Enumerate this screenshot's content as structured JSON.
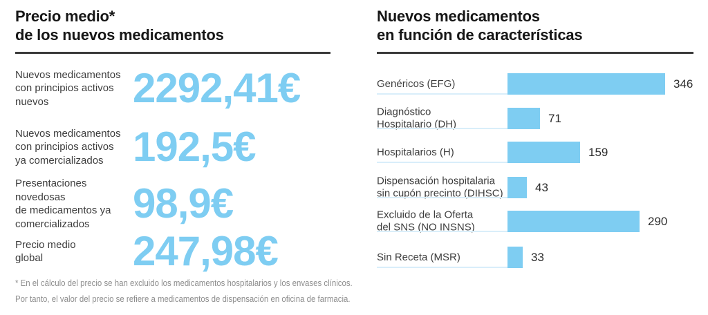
{
  "colors": {
    "accent": "#7ecdf2",
    "row_line": "#d9eefa",
    "title": "#161616",
    "label": "#3d3d3d",
    "value": "#2d2d2d",
    "rule": "#3a3a3a",
    "footnote": "#8e8e8e"
  },
  "left_panel": {
    "title": "Precio medio*\nde los nuevos medicamentos",
    "footnote": "* En el cálculo del precio se han excluido los medicamentos hospitalarios y los envases clínicos.\nPor tanto, el valor del precio se refiere a medicamentos de dispensación en oficina de farmacia."
  },
  "right_panel": {
    "title": "Nuevos medicamentos\nen función de características"
  },
  "chart_data": [
    {
      "type": "table",
      "title": "Precio medio* de los nuevos medicamentos",
      "unit": "EUR",
      "rows": [
        {
          "label": "Nuevos medicamentos\ncon principios activos\nnuevos",
          "value": "2292,41€"
        },
        {
          "label": "Nuevos medicamentos\ncon principios activos\nya comercializados",
          "value": "192,5€"
        },
        {
          "label": "Presentaciones novedosas\nde medicamentos ya\ncomercializados",
          "value": "98,9€"
        },
        {
          "label": "Precio medio\nglobal",
          "value": "247,98€"
        }
      ],
      "values_numeric": [
        2292.41,
        192.5,
        98.9,
        247.98
      ]
    },
    {
      "type": "bar",
      "orientation": "horizontal",
      "title": "Nuevos medicamentos en función de características",
      "categories": [
        "Genéricos (EFG)",
        "Diagnóstico\nHospitalario (DH)",
        "Hospitalarios (H)",
        "Dispensación hospitalaria\nsin cupón precinto (DIHSC)",
        "Excluido de la Oferta\ndel SNS (NO INSNS)",
        "Sin Receta (MSR)"
      ],
      "values": [
        346,
        71,
        159,
        43,
        290,
        33
      ],
      "xlim": [
        0,
        346
      ],
      "bar_color": "#7ecdf2",
      "value_labels": true,
      "grid": false,
      "legend": false
    }
  ]
}
